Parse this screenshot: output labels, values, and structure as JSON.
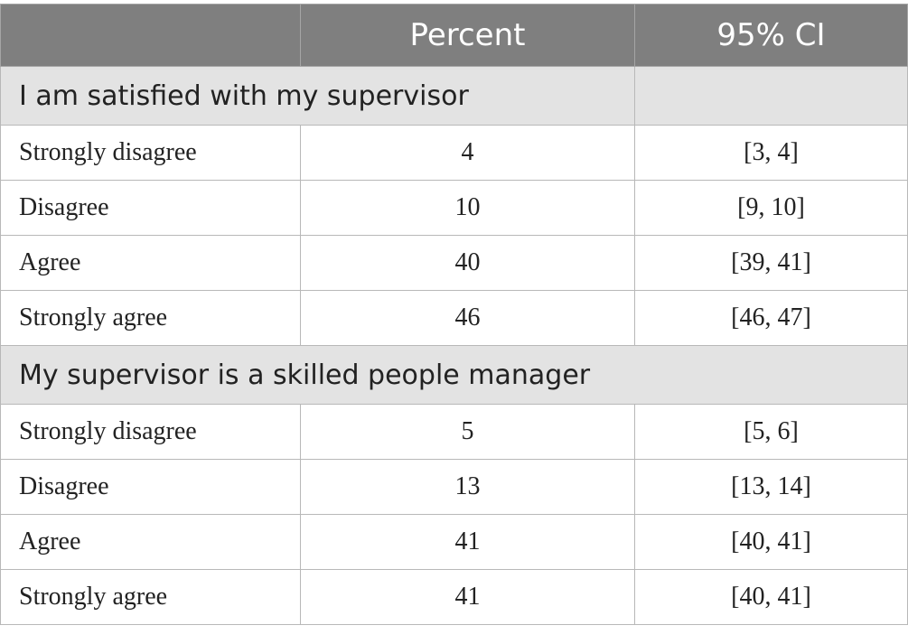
{
  "header": {
    "col1": "",
    "col2": "Percent",
    "col3": "95% CI"
  },
  "sections": [
    {
      "title": "I am satisfied with my supervisor",
      "rows": [
        {
          "label": "Strongly disagree",
          "percent": "4",
          "ci": "[3, 4]"
        },
        {
          "label": "Disagree",
          "percent": "10",
          "ci": "[9, 10]"
        },
        {
          "label": "Agree",
          "percent": "40",
          "ci": "[39, 41]"
        },
        {
          "label": "Strongly agree",
          "percent": "46",
          "ci": "[46, 47]"
        }
      ]
    },
    {
      "title": "My supervisor is a skilled people manager",
      "rows": [
        {
          "label": "Strongly disagree",
          "percent": "5",
          "ci": "[5, 6]"
        },
        {
          "label": "Disagree",
          "percent": "13",
          "ci": "[13, 14]"
        },
        {
          "label": "Agree",
          "percent": "41",
          "ci": "[40, 41]"
        },
        {
          "label": "Strongly agree",
          "percent": "41",
          "ci": "[40, 41]"
        }
      ]
    }
  ]
}
